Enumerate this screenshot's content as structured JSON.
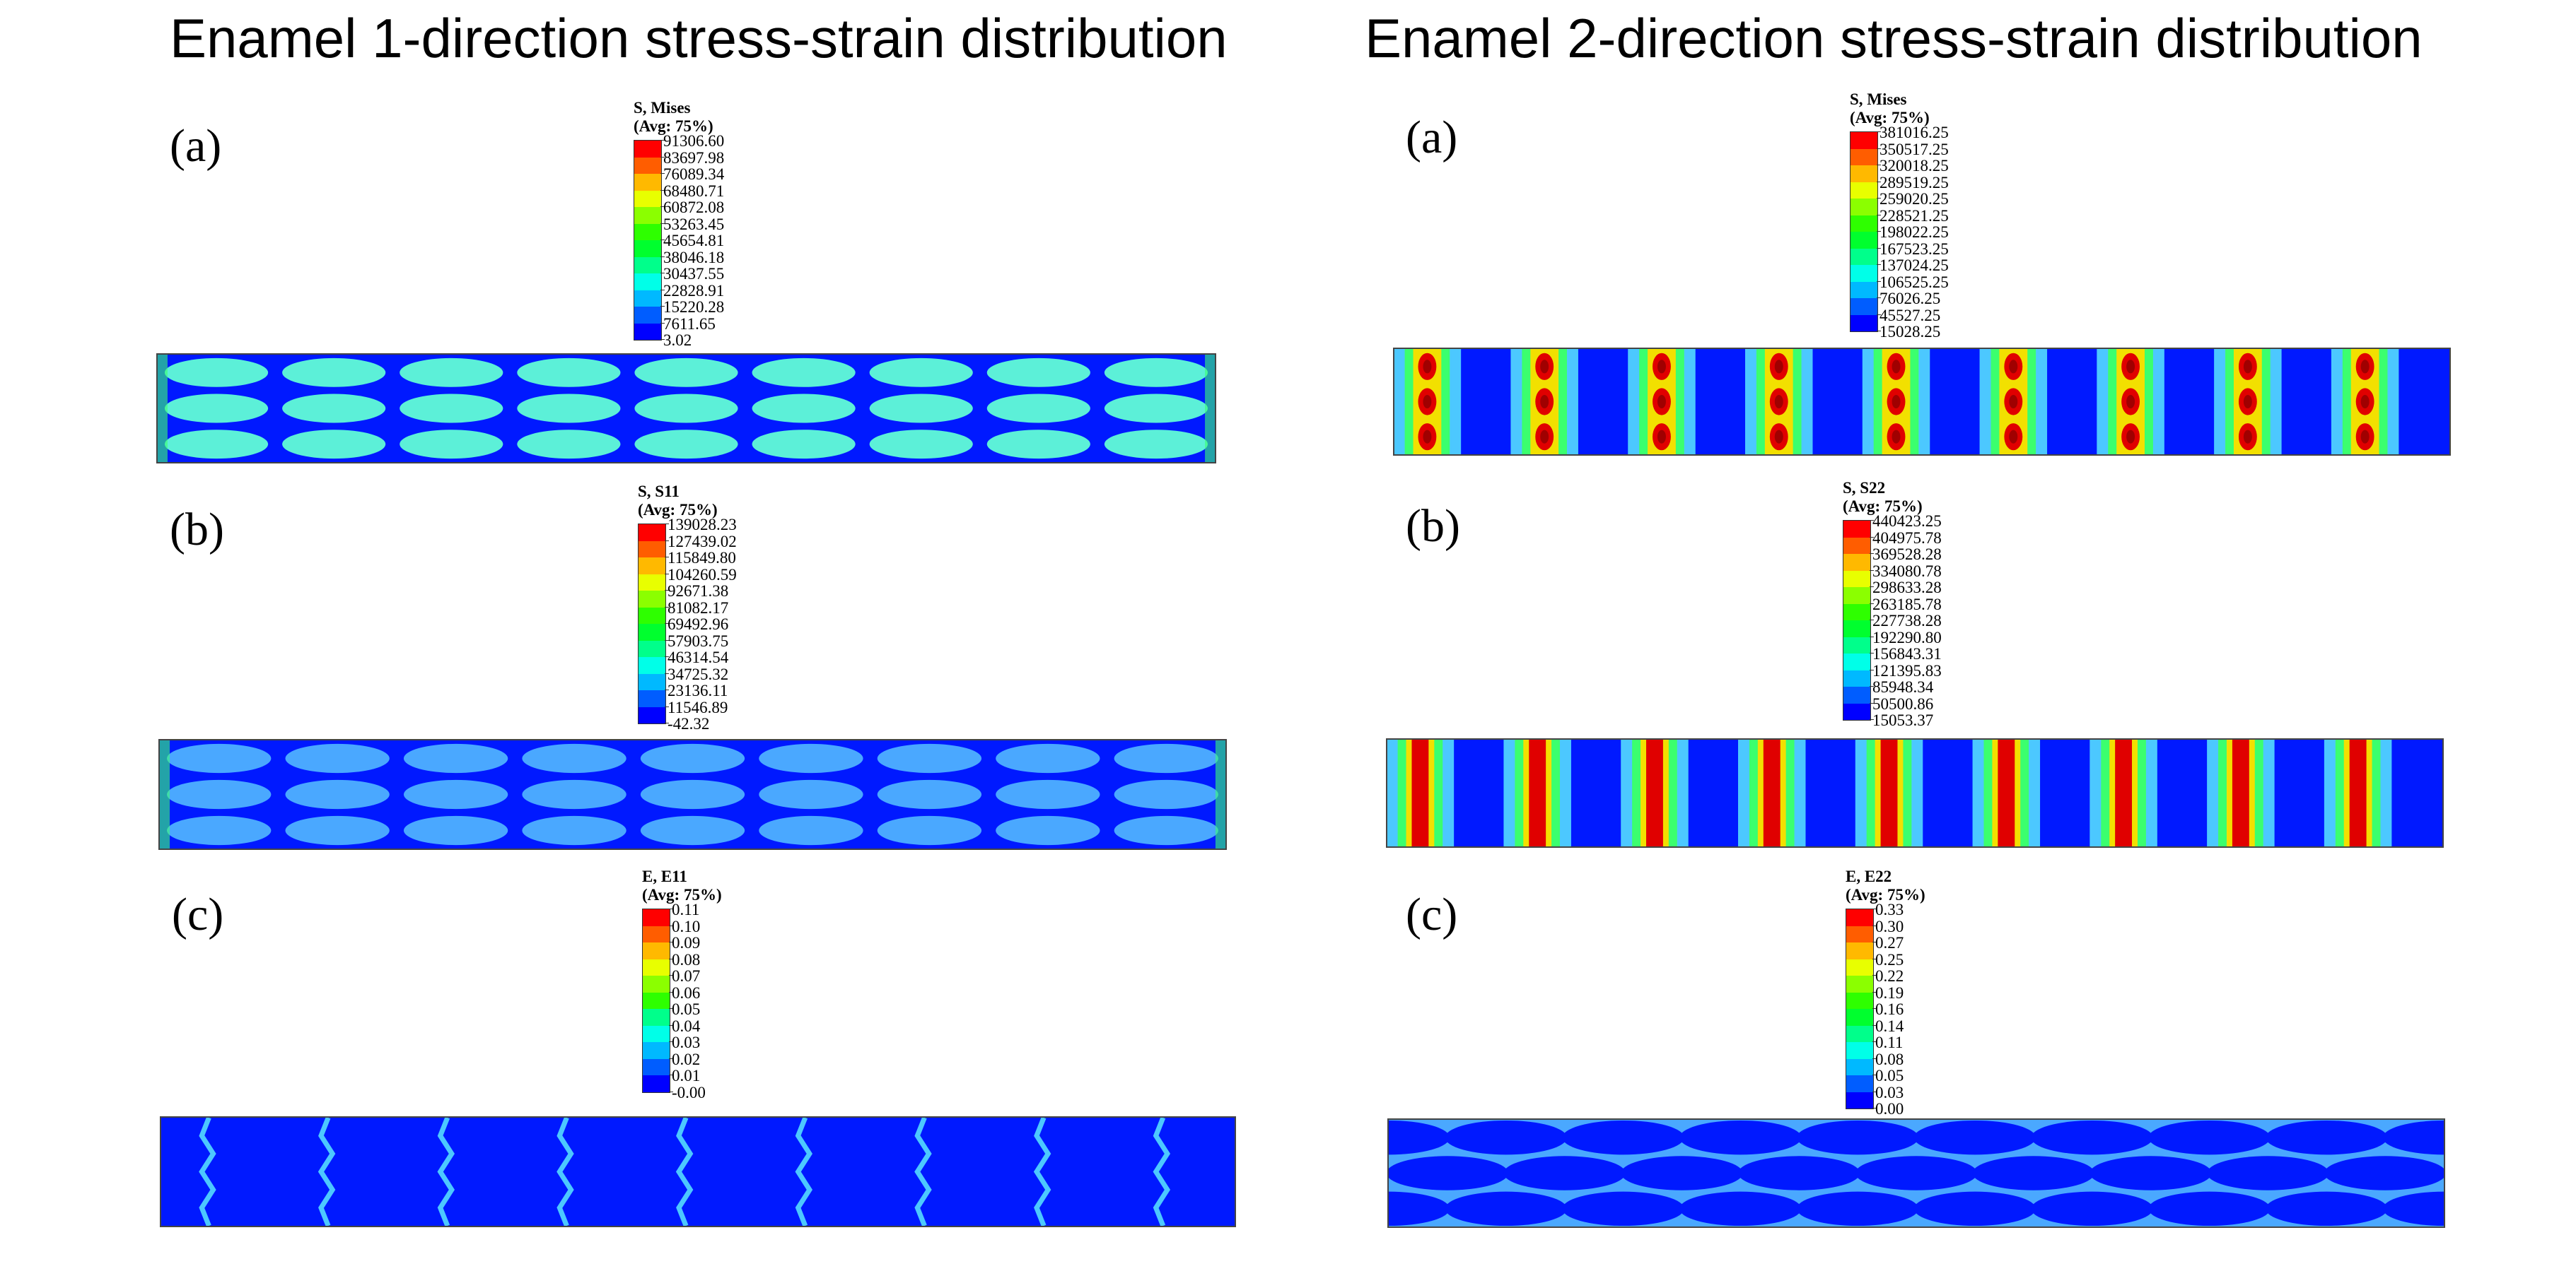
{
  "colors": {
    "contour": [
      "#0000ff",
      "#005dff",
      "#00b9ff",
      "#00ffe8",
      "#00ff8b",
      "#00ff2e",
      "#2eff00",
      "#8bff00",
      "#e8ff00",
      "#ffb900",
      "#ff5d00",
      "#ff0000"
    ],
    "field_base": "#0019ff",
    "inclusion_cyan": "#5cf0d8",
    "inclusion_blue": "#4aa8ff",
    "band_red": "#e00000",
    "band_yellow": "#f2e000",
    "band_green": "#3bff6e",
    "band_light": "#4cc8ff"
  },
  "columns": [
    {
      "title": "Enamel 1-direction stress-strain distribution",
      "panels": [
        {
          "label": "(a)",
          "legend": {
            "var": "S, Mises",
            "avg": "(Avg: 75%)",
            "values": [
              "91306.60",
              "83697.98",
              "76089.34",
              "68480.71",
              "60872.08",
              "53263.45",
              "45654.81",
              "38046.18",
              "30437.55",
              "22828.91",
              "15220.28",
              "7611.65",
              "3.02"
            ]
          },
          "field_style": "cyan-ellipses"
        },
        {
          "label": "(b)",
          "legend": {
            "var": "S, S11",
            "avg": "(Avg: 75%)",
            "values": [
              "139028.23",
              "127439.02",
              "115849.80",
              "104260.59",
              "92671.38",
              "81082.17",
              "69492.96",
              "57903.75",
              "46314.54",
              "34725.32",
              "23136.11",
              "11546.89",
              "-42.32"
            ]
          },
          "field_style": "blue-ellipses"
        },
        {
          "label": "(c)",
          "legend": {
            "var": "E, E11",
            "avg": "(Avg: 75%)",
            "values": [
              "0.11",
              "0.10",
              "0.09",
              "0.08",
              "0.07",
              "0.06",
              "0.05",
              "0.04",
              "0.03",
              "0.02",
              "0.01",
              "-0.00"
            ]
          },
          "field_style": "zigzag-lines"
        }
      ]
    },
    {
      "title": "Enamel 2-direction stress-strain distribution",
      "panels": [
        {
          "label": "(a)",
          "legend": {
            "var": "S, Mises",
            "avg": "(Avg: 75%)",
            "values": [
              "381016.25",
              "350517.25",
              "320018.25",
              "289519.25",
              "259020.25",
              "228521.25",
              "198022.25",
              "167523.25",
              "137024.25",
              "106525.25",
              "76026.25",
              "45527.25",
              "15028.25"
            ]
          },
          "field_style": "red-columns-spots"
        },
        {
          "label": "(b)",
          "legend": {
            "var": "S, S22",
            "avg": "(Avg: 75%)",
            "values": [
              "440423.25",
              "404975.78",
              "369528.28",
              "334080.78",
              "298633.28",
              "263185.78",
              "227738.28",
              "192290.80",
              "156843.31",
              "121395.83",
              "85948.34",
              "50500.86",
              "15053.37"
            ]
          },
          "field_style": "red-columns-bands"
        },
        {
          "label": "(c)",
          "legend": {
            "var": "E, E22",
            "avg": "(Avg: 75%)",
            "values": [
              "0.33",
              "0.30",
              "0.27",
              "0.25",
              "0.22",
              "0.19",
              "0.16",
              "0.14",
              "0.11",
              "0.08",
              "0.05",
              "0.03",
              "0.00"
            ]
          },
          "field_style": "blue-ellipses-red-tips"
        }
      ]
    }
  ]
}
